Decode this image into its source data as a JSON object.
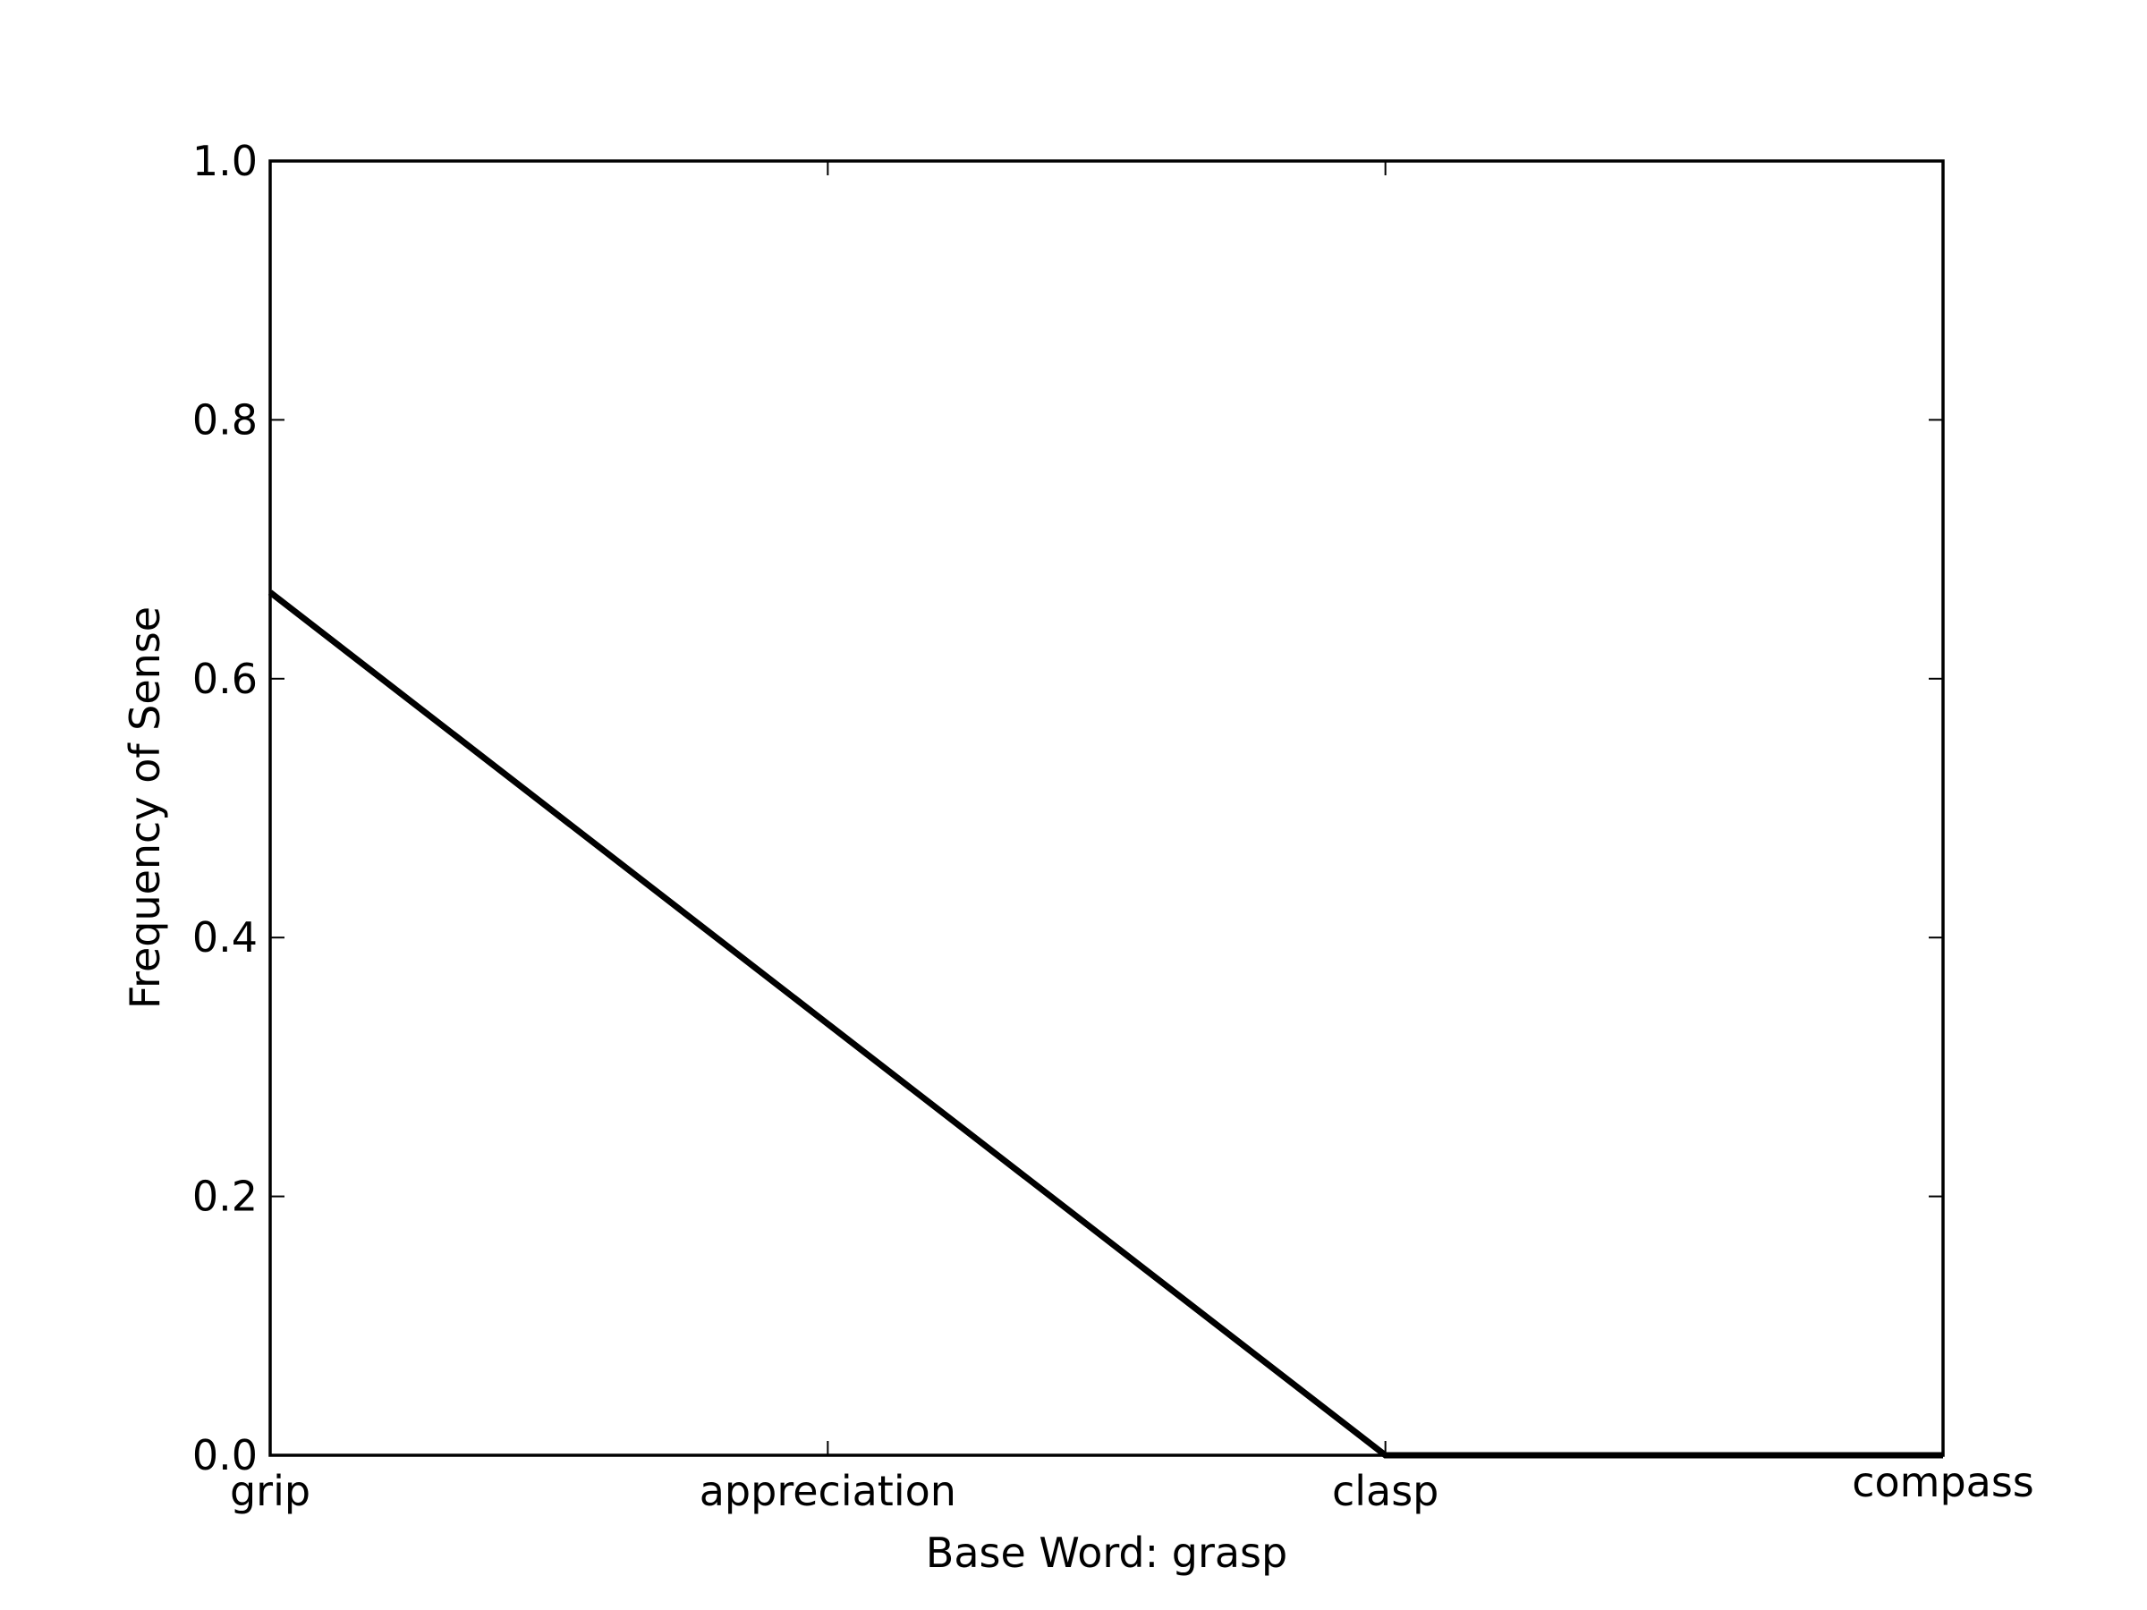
{
  "chart_data": {
    "type": "line",
    "title": "",
    "xlabel": "Base Word: grasp",
    "ylabel": "Frequency of Sense",
    "categories": [
      "grip",
      "appreciation",
      "clasp",
      "compass"
    ],
    "series": [
      {
        "values": [
          0.6667,
          0.3333,
          0.0,
          0.0
        ]
      }
    ],
    "ylim": [
      0.0,
      1.0
    ],
    "yticks": [
      "0.0",
      "0.2",
      "0.4",
      "0.6",
      "0.8",
      "1.0"
    ],
    "grid": false,
    "line_color": "#000000"
  }
}
